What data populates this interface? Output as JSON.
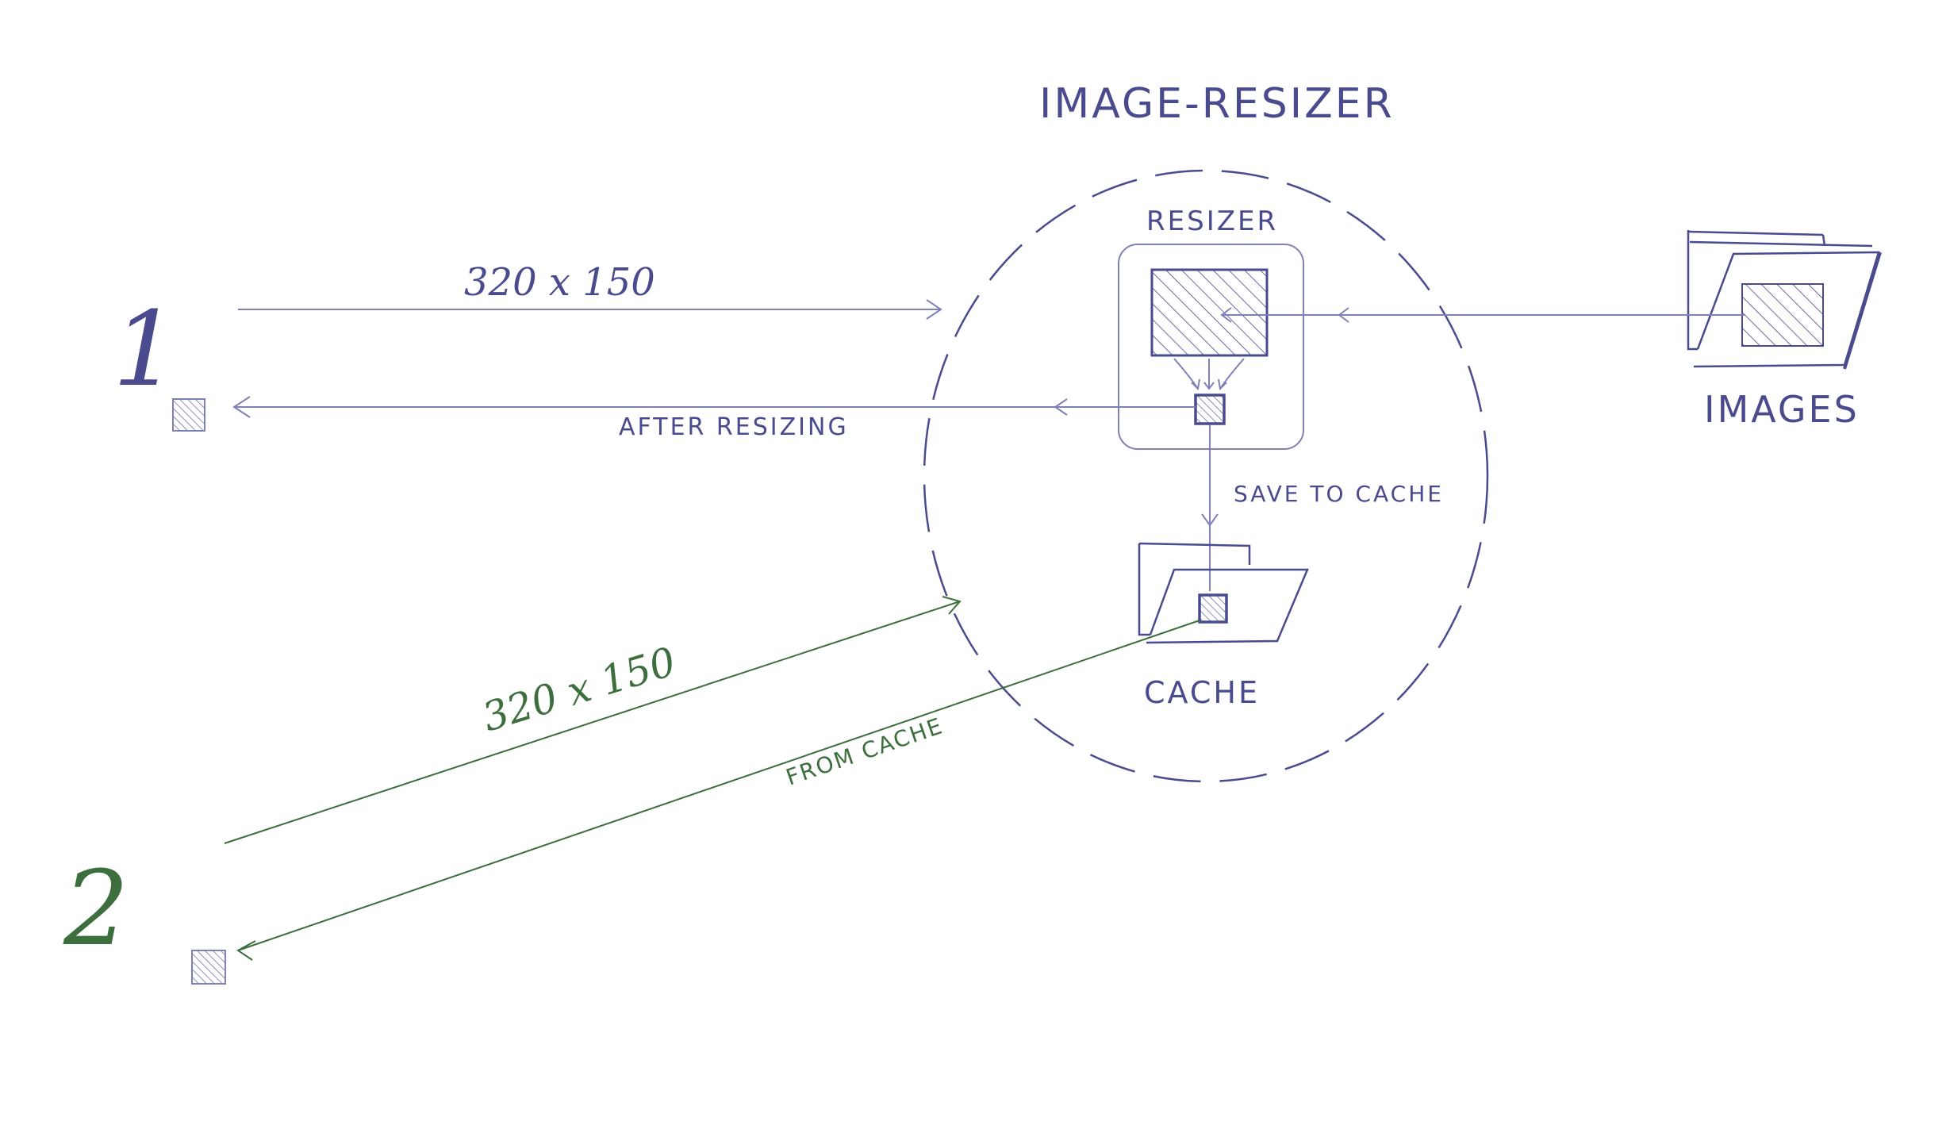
{
  "title": "IMAGE-RESIZER",
  "nodes": {
    "resizer": "RESIZER",
    "images": "IMAGES",
    "cache": "CACHE"
  },
  "clients": {
    "client_1": "1",
    "client_2": "2"
  },
  "edges": {
    "request_1": "320 x 150",
    "response_1": "AFTER RESIZING",
    "save_to_cache": "SAVE TO CACHE",
    "request_2": "320 x 150",
    "response_2": "FROM CACHE"
  },
  "colors": {
    "purple": "#4a4a8e",
    "purple_light": "#8080b8",
    "green": "#3d6e3d",
    "hatch": "#6a6aa8"
  }
}
